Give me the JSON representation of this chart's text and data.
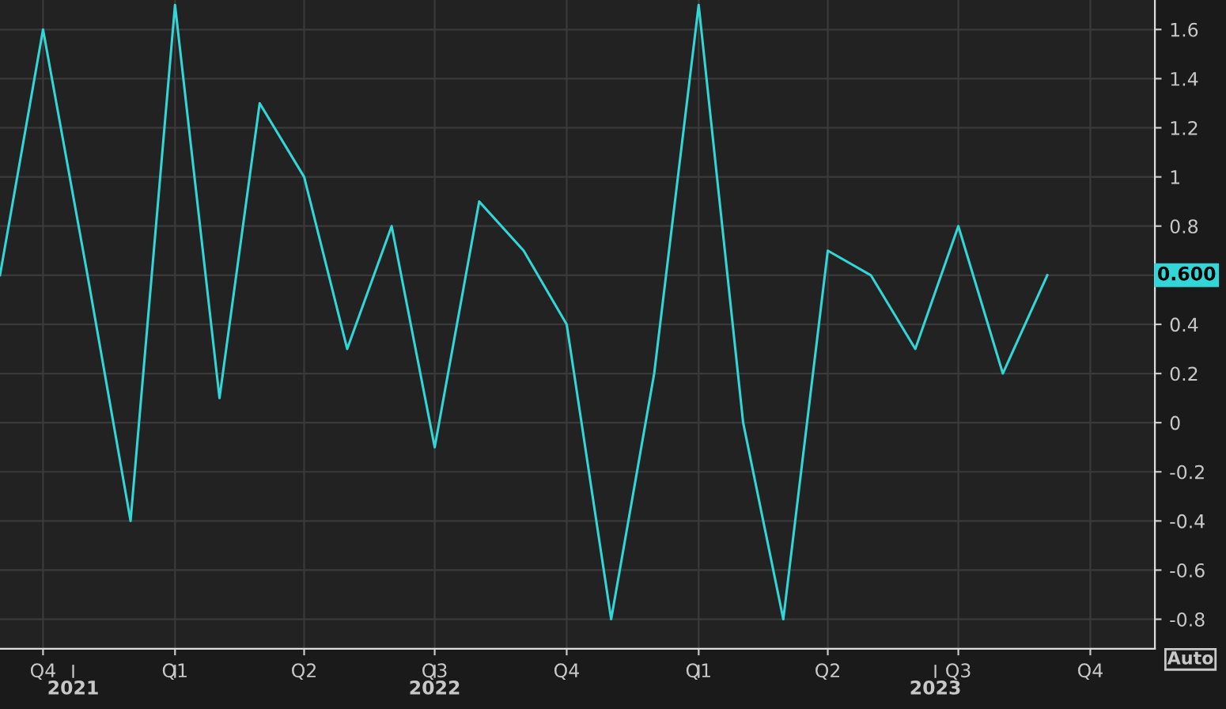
{
  "chart_data": {
    "type": "line",
    "x": [
      "2021-09",
      "2021-10",
      "2021-11",
      "2021-12",
      "2022-01",
      "2022-02",
      "2022-03",
      "2022-04",
      "2022-05",
      "2022-06",
      "2022-07",
      "2022-08",
      "2022-09",
      "2022-10",
      "2022-11",
      "2022-12",
      "2023-01",
      "2023-02",
      "2023-03",
      "2023-04",
      "2023-05",
      "2023-06",
      "2023-07",
      "2023-08",
      "2023-09"
    ],
    "series": [
      {
        "color": "#33d6d6",
        "values": [
          0.6,
          1.6,
          0.6,
          -0.4,
          1.7,
          0.1,
          1.3,
          1.0,
          0.3,
          0.8,
          -0.1,
          0.9,
          0.7,
          0.4,
          -0.8,
          0.2,
          1.7,
          0.0,
          -0.8,
          0.7,
          0.6,
          0.3,
          0.8,
          0.2,
          0.6
        ]
      }
    ],
    "xlim": [
      "2021-09",
      "2023-11-15"
    ],
    "xticks": [
      {
        "value": "2021-10",
        "label": "Q4"
      },
      {
        "value": "2022-01",
        "label": "Q1"
      },
      {
        "value": "2022-04",
        "label": "Q2"
      },
      {
        "value": "2022-07",
        "label": "Q3"
      },
      {
        "value": "2022-10",
        "label": "Q4"
      },
      {
        "value": "2023-01",
        "label": "Q1"
      },
      {
        "value": "2023-04",
        "label": "Q2"
      },
      {
        "value": "2023-07",
        "label": "Q3"
      },
      {
        "value": "2023-10",
        "label": "Q4"
      }
    ],
    "x2ticks": [
      {
        "value": "2021-10-22",
        "label": "2021"
      },
      {
        "value": "2022-01",
        "label": null
      },
      {
        "value": "2022-07",
        "label": "2022"
      },
      {
        "value": "2023-01",
        "label": null
      },
      {
        "value": "2023-06-15",
        "label": "2023"
      }
    ],
    "x2lim": [
      "2021-09",
      "2023-11-15"
    ],
    "ylim": [
      -0.92,
      1.72
    ],
    "yticks": [
      -0.8,
      -0.6,
      -0.4,
      -0.2,
      0,
      0.2,
      0.4,
      {
        "value": 0.6,
        "label": null
      },
      0.8,
      1,
      1.2,
      1.4,
      1.6
    ],
    "annotations": [
      "0.600",
      "Auto"
    ],
    "grid": true,
    "legend": false,
    "marker": "none",
    "line_style": "solid"
  }
}
